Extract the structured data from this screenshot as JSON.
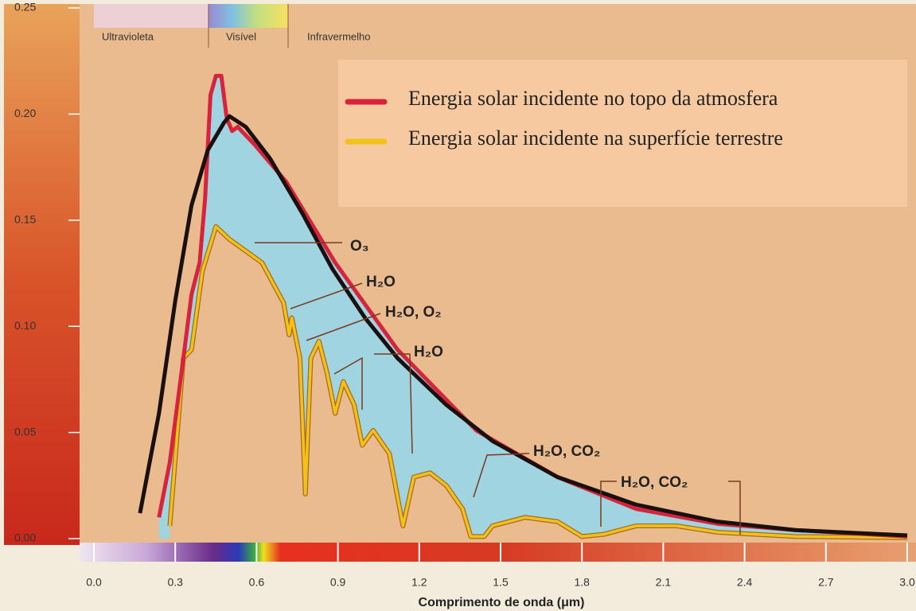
{
  "chart_data": {
    "type": "line",
    "xlabel": "Comprimento de onda (μm)",
    "regions": [
      "Ultravioleta",
      "Visível",
      "Infravermelho"
    ],
    "xlim": [
      0,
      3
    ],
    "ylim": [
      0,
      0.25
    ],
    "xticks": [
      {
        "value": 0,
        "label": "0.0"
      },
      0.3,
      0.6,
      0.9,
      1.2,
      1.5,
      1.8,
      2.1,
      2.4,
      2.7,
      {
        "value": 3,
        "label": "3.0"
      }
    ],
    "yticks": [
      {
        "value": 0,
        "label": "0.00"
      },
      0.05,
      {
        "value": 0.1,
        "label": "0.10"
      },
      0.15,
      {
        "value": 0.2,
        "label": "0.20"
      },
      0.25
    ],
    "legend": "upper right",
    "series": [
      {
        "color": "#1a1010",
        "x": [
          0.17,
          0.24,
          0.3,
          0.36,
          0.42,
          0.48,
          0.5,
          0.56,
          0.65,
          0.77,
          0.88,
          1.0,
          1.12,
          1.3,
          1.47,
          1.71,
          2.0,
          2.3,
          2.59,
          3.0
        ],
        "values": [
          0.012,
          0.059,
          0.112,
          0.157,
          0.183,
          0.196,
          0.199,
          0.194,
          0.179,
          0.153,
          0.127,
          0.104,
          0.085,
          0.063,
          0.046,
          0.029,
          0.016,
          0.008,
          0.004,
          0.0015
        ]
      },
      {
        "name": "Energia solar incidente no topo da atmosfera",
        "color": "#d8233c",
        "x": [
          0.24,
          0.28,
          0.33,
          0.36,
          0.39,
          0.41,
          0.43,
          0.45,
          0.47,
          0.49,
          0.51,
          0.53,
          0.59,
          0.71,
          0.89,
          1.12,
          1.41,
          1.71,
          2.0,
          2.3,
          2.59,
          3.0
        ],
        "values": [
          0.01,
          0.036,
          0.085,
          0.115,
          0.13,
          0.16,
          0.209,
          0.218,
          0.218,
          0.198,
          0.192,
          0.194,
          0.186,
          0.168,
          0.13,
          0.089,
          0.051,
          0.029,
          0.014,
          0.007,
          0.004,
          0.001
        ]
      },
      {
        "name": "Energia solar incidente na superfície terrestre",
        "color": "#f2c11a",
        "x": [
          0.28,
          0.33,
          0.36,
          0.4,
          0.45,
          0.5,
          0.62,
          0.7,
          0.72,
          0.73,
          0.76,
          0.78,
          0.8,
          0.83,
          0.86,
          0.89,
          0.92,
          0.96,
          0.99,
          1.03,
          1.09,
          1.14,
          1.18,
          1.24,
          1.3,
          1.36,
          1.39,
          1.44,
          1.47,
          1.59,
          1.71,
          1.8,
          1.88,
          2.0,
          2.15,
          2.3,
          2.59,
          3.0
        ],
        "values": [
          0.006,
          0.085,
          0.089,
          0.126,
          0.147,
          0.141,
          0.13,
          0.111,
          0.096,
          0.104,
          0.085,
          0.021,
          0.085,
          0.093,
          0.078,
          0.059,
          0.074,
          0.063,
          0.044,
          0.051,
          0.04,
          0.006,
          0.029,
          0.031,
          0.025,
          0.014,
          0.001,
          0.001,
          0.006,
          0.01,
          0.008,
          0.001,
          0.002,
          0.006,
          0.006,
          0.003,
          0.001,
          0.0004
        ]
      }
    ],
    "annotations": [
      "O₃",
      "H₂O",
      "H₂O, O₂",
      "H₂O",
      "H₂O, CO₂",
      "H₂O, CO₂"
    ]
  }
}
